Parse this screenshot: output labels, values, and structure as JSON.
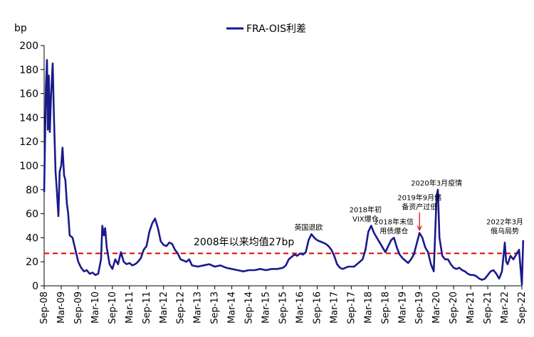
{
  "chart_data": {
    "type": "line",
    "y_unit": "bp",
    "ylim": [
      0,
      200
    ],
    "y_ticks": [
      0,
      20,
      40,
      60,
      80,
      100,
      120,
      140,
      160,
      180,
      200
    ],
    "x_range": [
      "2008-09",
      "2022-09"
    ],
    "x_ticks": [
      "Sep-08",
      "Mar-09",
      "Sep-09",
      "Mar-10",
      "Sep-10",
      "Mar-11",
      "Sep-11",
      "Mar-12",
      "Sep-12",
      "Mar-13",
      "Sep-13",
      "Mar-14",
      "Sep-14",
      "Mar-15",
      "Sep-15",
      "Mar-16",
      "Sep-16",
      "Mar-17",
      "Sep-17",
      "Mar-18",
      "Sep-18",
      "Mar-19",
      "Sep-19",
      "Mar-20",
      "Sep-20",
      "Mar-21",
      "Sep-21",
      "Mar-22",
      "Sep-22"
    ],
    "grid": false,
    "legend_position": "top-center",
    "series": [
      {
        "name": "FRA-OIS利差",
        "color": "#1a1a8c",
        "points": [
          [
            "2008-09",
            78
          ],
          [
            "2008-09-20",
            165
          ],
          [
            "2008-10",
            188
          ],
          [
            "2008-10-10",
            130
          ],
          [
            "2008-10-20",
            175
          ],
          [
            "2008-11",
            128
          ],
          [
            "2008-11-15",
            160
          ],
          [
            "2008-12",
            185
          ],
          [
            "2008-12-15",
            140
          ],
          [
            "2009-01",
            95
          ],
          [
            "2009-01-15",
            80
          ],
          [
            "2009-02",
            58
          ],
          [
            "2009-02-15",
            95
          ],
          [
            "2009-03",
            100
          ],
          [
            "2009-03-15",
            115
          ],
          [
            "2009-04",
            92
          ],
          [
            "2009-04-15",
            88
          ],
          [
            "2009-05",
            68
          ],
          [
            "2009-05-15",
            60
          ],
          [
            "2009-06",
            42
          ],
          [
            "2009-07",
            40
          ],
          [
            "2009-08",
            30
          ],
          [
            "2009-09",
            20
          ],
          [
            "2009-10",
            15
          ],
          [
            "2009-11",
            12
          ],
          [
            "2009-12",
            13
          ],
          [
            "2010-01",
            10
          ],
          [
            "2010-02",
            11
          ],
          [
            "2010-03",
            9
          ],
          [
            "2010-04",
            10
          ],
          [
            "2010-05",
            22
          ],
          [
            "2010-05-15",
            50
          ],
          [
            "2010-06",
            42
          ],
          [
            "2010-06-15",
            48
          ],
          [
            "2010-07",
            32
          ],
          [
            "2010-08",
            18
          ],
          [
            "2010-09",
            14
          ],
          [
            "2010-10",
            22
          ],
          [
            "2010-11",
            18
          ],
          [
            "2010-12",
            28
          ],
          [
            "2011-01",
            20
          ],
          [
            "2011-02",
            18
          ],
          [
            "2011-03",
            19
          ],
          [
            "2011-04",
            17
          ],
          [
            "2011-05",
            18
          ],
          [
            "2011-06",
            20
          ],
          [
            "2011-07",
            23
          ],
          [
            "2011-08",
            30
          ],
          [
            "2011-09",
            33
          ],
          [
            "2011-10",
            45
          ],
          [
            "2011-11",
            52
          ],
          [
            "2011-12",
            56
          ],
          [
            "2012-01",
            48
          ],
          [
            "2012-02",
            37
          ],
          [
            "2012-03",
            34
          ],
          [
            "2012-04",
            33
          ],
          [
            "2012-05",
            36
          ],
          [
            "2012-06",
            35
          ],
          [
            "2012-07",
            30
          ],
          [
            "2012-08",
            27
          ],
          [
            "2012-09",
            22
          ],
          [
            "2012-10",
            21
          ],
          [
            "2012-11",
            20
          ],
          [
            "2012-12",
            22
          ],
          [
            "2013-01",
            17
          ],
          [
            "2013-03",
            16
          ],
          [
            "2013-05",
            17
          ],
          [
            "2013-07",
            18
          ],
          [
            "2013-09",
            16
          ],
          [
            "2013-11",
            17
          ],
          [
            "2014-01",
            15
          ],
          [
            "2014-03",
            14
          ],
          [
            "2014-05",
            13
          ],
          [
            "2014-07",
            12
          ],
          [
            "2014-09",
            13
          ],
          [
            "2014-11",
            13
          ],
          [
            "2015-01",
            14
          ],
          [
            "2015-03",
            13
          ],
          [
            "2015-05",
            14
          ],
          [
            "2015-07",
            14
          ],
          [
            "2015-09",
            15
          ],
          [
            "2015-10",
            17
          ],
          [
            "2015-11",
            22
          ],
          [
            "2015-12",
            24
          ],
          [
            "2016-01",
            26
          ],
          [
            "2016-02",
            25
          ],
          [
            "2016-03",
            27
          ],
          [
            "2016-04",
            26
          ],
          [
            "2016-05",
            28
          ],
          [
            "2016-06",
            38
          ],
          [
            "2016-07",
            43
          ],
          [
            "2016-08",
            40
          ],
          [
            "2016-09",
            38
          ],
          [
            "2016-10",
            37
          ],
          [
            "2016-11",
            36
          ],
          [
            "2016-12",
            35
          ],
          [
            "2017-01",
            33
          ],
          [
            "2017-02",
            30
          ],
          [
            "2017-03",
            25
          ],
          [
            "2017-04",
            18
          ],
          [
            "2017-05",
            15
          ],
          [
            "2017-06",
            14
          ],
          [
            "2017-07",
            15
          ],
          [
            "2017-08",
            16
          ],
          [
            "2017-09",
            16
          ],
          [
            "2017-10",
            16
          ],
          [
            "2017-11",
            18
          ],
          [
            "2017-12",
            20
          ],
          [
            "2018-01",
            22
          ],
          [
            "2018-02",
            30
          ],
          [
            "2018-03",
            45
          ],
          [
            "2018-04",
            50
          ],
          [
            "2018-05",
            44
          ],
          [
            "2018-06",
            40
          ],
          [
            "2018-07",
            36
          ],
          [
            "2018-08",
            32
          ],
          [
            "2018-09",
            28
          ],
          [
            "2018-10",
            33
          ],
          [
            "2018-11",
            38
          ],
          [
            "2018-12",
            40
          ],
          [
            "2019-01",
            32
          ],
          [
            "2019-02",
            26
          ],
          [
            "2019-03",
            23
          ],
          [
            "2019-04",
            21
          ],
          [
            "2019-05",
            19
          ],
          [
            "2019-06",
            22
          ],
          [
            "2019-07",
            26
          ],
          [
            "2019-08",
            35
          ],
          [
            "2019-09",
            44
          ],
          [
            "2019-10",
            40
          ],
          [
            "2019-11",
            32
          ],
          [
            "2019-12",
            28
          ],
          [
            "2020-01",
            18
          ],
          [
            "2020-02",
            12
          ],
          [
            "2020-03",
            75
          ],
          [
            "2020-03-15",
            80
          ],
          [
            "2020-04",
            40
          ],
          [
            "2020-05",
            25
          ],
          [
            "2020-06",
            22
          ],
          [
            "2020-07",
            22
          ],
          [
            "2020-08",
            18
          ],
          [
            "2020-09",
            15
          ],
          [
            "2020-10",
            14
          ],
          [
            "2020-11",
            15
          ],
          [
            "2020-12",
            13
          ],
          [
            "2021-01",
            12
          ],
          [
            "2021-02",
            10
          ],
          [
            "2021-03",
            9
          ],
          [
            "2021-04",
            9
          ],
          [
            "2021-05",
            8
          ],
          [
            "2021-06",
            6
          ],
          [
            "2021-07",
            5
          ],
          [
            "2021-08",
            6
          ],
          [
            "2021-09",
            9
          ],
          [
            "2021-10",
            12
          ],
          [
            "2021-11",
            13
          ],
          [
            "2021-12",
            10
          ],
          [
            "2022-01",
            6
          ],
          [
            "2022-02",
            12
          ],
          [
            "2022-03",
            36
          ],
          [
            "2022-03-15",
            20
          ],
          [
            "2022-04",
            18
          ],
          [
            "2022-05",
            25
          ],
          [
            "2022-06",
            22
          ],
          [
            "2022-07",
            26
          ],
          [
            "2022-08",
            30
          ],
          [
            "2022-09",
            1
          ],
          [
            "2022-09-15",
            38
          ]
        ]
      }
    ],
    "reference_line": {
      "value": 27,
      "color": "#e00000",
      "style": "dashed",
      "label": "2008年以来均值27bp"
    },
    "annotations": [
      {
        "lines": [
          "英国退欧"
        ],
        "x": "2016-06",
        "y": 43
      },
      {
        "lines": [
          "2018年初",
          "VIX爆仓"
        ],
        "x": "2018-02",
        "y": 50
      },
      {
        "lines": [
          "2018年末信",
          "用债爆仓"
        ],
        "x": "2018-12",
        "y": 40
      },
      {
        "lines": [
          "2019年9月储",
          "备资产过低"
        ],
        "x": "2019-09",
        "y": 60,
        "arrow": true,
        "arrow_to": 44
      },
      {
        "lines": [
          "2020年3月疫情"
        ],
        "x": "2020-03",
        "y": 80
      },
      {
        "lines": [
          "2022年3月",
          "俄乌局势"
        ],
        "x": "2022-03",
        "y": 40
      }
    ]
  }
}
